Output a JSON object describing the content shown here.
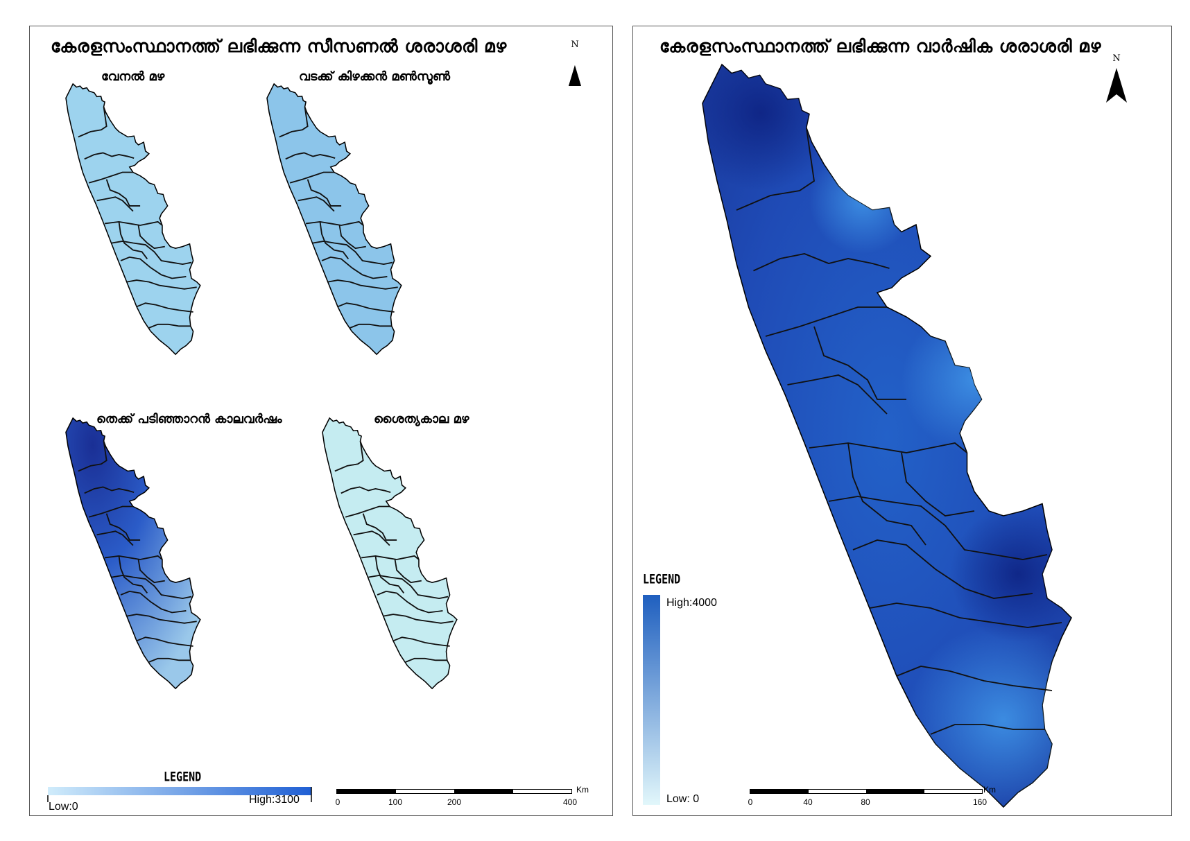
{
  "left_panel": {
    "title": "കേരളസംസ്ഥാനത്ത് ലഭിക്കുന്ന സീസണൽ ശരാശരി മഴ",
    "north_label": "N",
    "maps": [
      {
        "title": "വേനൽ മഴ",
        "fill": "#9dd3ee"
      },
      {
        "title": "വടക്ക് കിഴക്കൻ മൺസൂൺ",
        "fill": "#8cc5ea"
      },
      {
        "title": "തെക്ക് പടിഞ്ഞാറൻ കാലവർഷം",
        "fill": "#2f63c8"
      },
      {
        "title": "ശൈത്യകാല മഴ",
        "fill": "#c5ecf1"
      }
    ],
    "legend": {
      "title": "LEGEND",
      "low_label": "Low:0",
      "high_label": "High:3100",
      "color_low": "#d0ecfb",
      "color_high": "#1f5fd4"
    },
    "scale": {
      "unit": "Km",
      "ticks": [
        "0",
        "100",
        "200",
        "400"
      ]
    }
  },
  "right_panel": {
    "title": "കേരളസംസ്ഥാനത്ത് ലഭിക്കുന്ന വാർഷിക ശരാശരി മഴ",
    "north_label": "N",
    "fill": "#1f4fb8",
    "legend": {
      "title": "LEGEND",
      "high_label": "High:4000",
      "low_label": "Low: 0",
      "color_low": "#e2f7fb",
      "color_high": "#1f5fbf"
    },
    "scale": {
      "unit": "Km",
      "ticks": [
        "0",
        "40",
        "80",
        "160"
      ]
    }
  }
}
